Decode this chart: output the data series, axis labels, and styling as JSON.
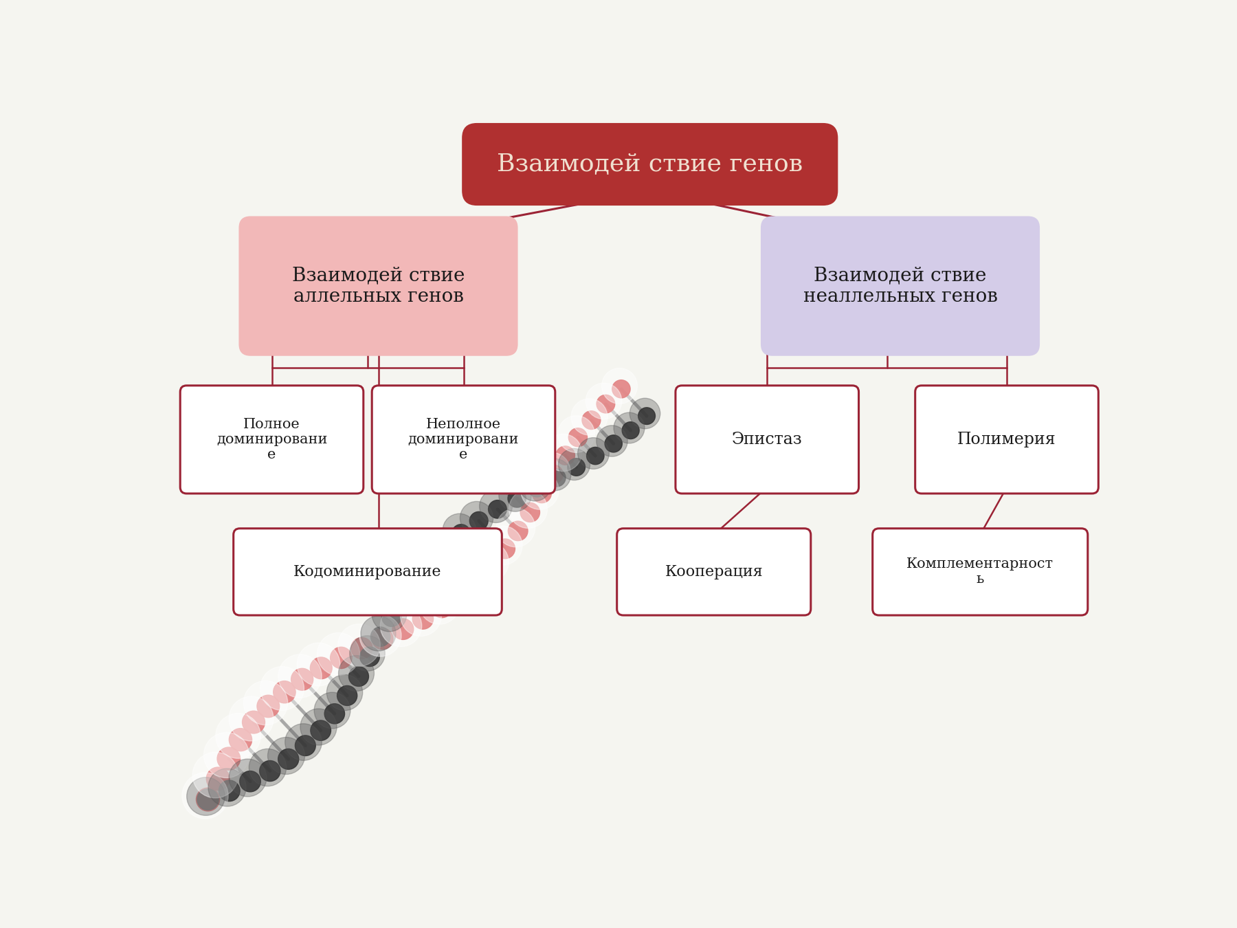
{
  "title": "Взаимодей ствие генов",
  "title_color": "#ffffff",
  "title_bg_dark": "#b03030",
  "title_bg_light": "#cc4444",
  "left_node_text": "Взаимодей ствие\nаллельных генов",
  "left_node_bg": "#f2b8b8",
  "right_node_text": "Взаимодей ствие\nнеаллельных генов",
  "right_node_bg": "#d4cce8",
  "box_border": "#9b2335",
  "line_color": "#9b2335",
  "bg_color": "#f5f5f0",
  "text_color": "#1a1a1a",
  "dna_red": "#cc2222",
  "dna_dark": "#222222",
  "dna_gray": "#888888"
}
